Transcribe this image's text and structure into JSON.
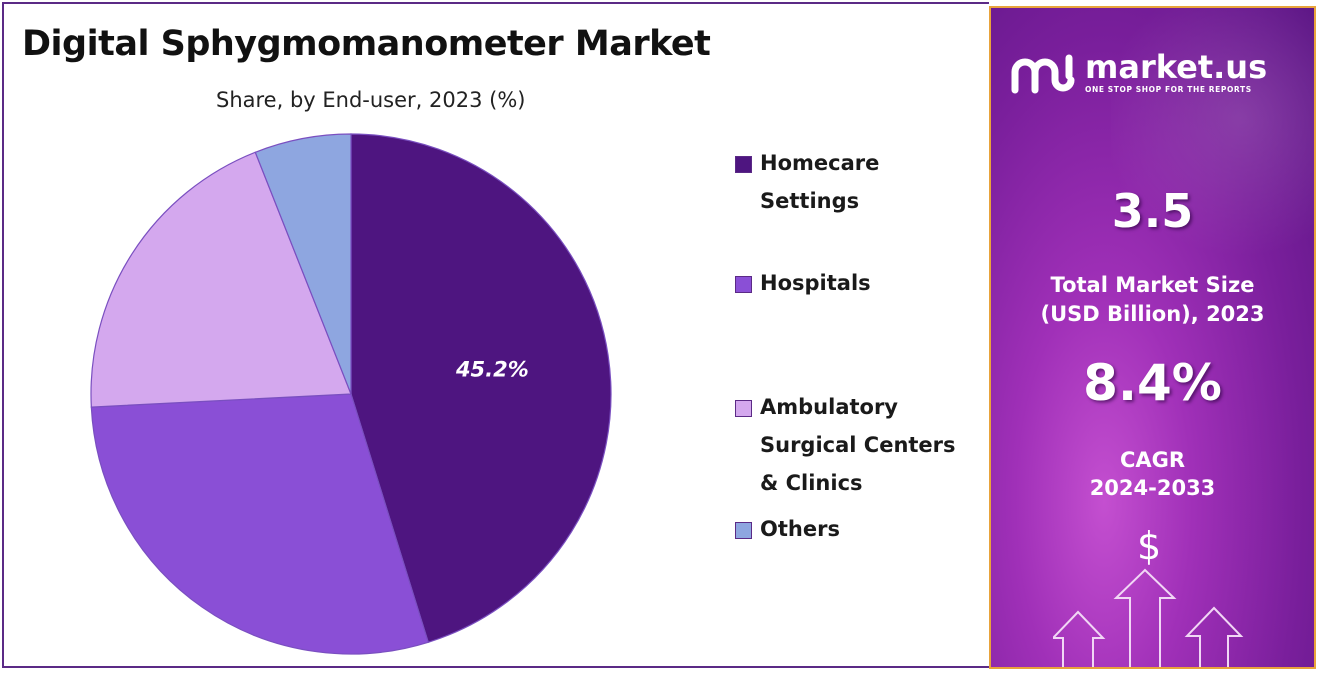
{
  "chart_data": {
    "type": "pie",
    "title": "Digital Sphygmomanometer Market",
    "subtitle": "Share, by End-user, 2023 (%)",
    "series": [
      {
        "name": "Homecare Settings",
        "value": 45.2,
        "color": "#4e1580",
        "label": "45.2%"
      },
      {
        "name": "Hospitals",
        "value": 29.0,
        "color": "#8a4fd6",
        "label": ""
      },
      {
        "name": "Ambulatory Surgical Centers & Clinics",
        "value": 19.8,
        "color": "#d4a8ee",
        "label": ""
      },
      {
        "name": "Others",
        "value": 6.0,
        "color": "#8ea6e0",
        "label": ""
      }
    ],
    "legend_position": "right"
  },
  "legend": [
    {
      "label": "Homecare Settings",
      "display": "Homecare\nSettings",
      "color": "#4e1580"
    },
    {
      "label": "Hospitals",
      "display": "Hospitals",
      "color": "#8a4fd6"
    },
    {
      "label": "Ambulatory Surgical Centers & Clinics",
      "display": "Ambulatory\nSurgical Centers\n& Clinics",
      "color": "#d4a8ee"
    },
    {
      "label": "Others",
      "display": "Others",
      "color": "#8ea6e0"
    }
  ],
  "panel": {
    "brand_name": "market.us",
    "brand_tagline": "ONE STOP SHOP FOR THE REPORTS",
    "market_size_value": "3.5",
    "market_size_label_line1": "Total Market Size",
    "market_size_label_line2": "(USD Billion), 2023",
    "cagr_value": "8.4%",
    "cagr_label_line1": "CAGR",
    "cagr_label_line2": "2024-2033",
    "currency_symbol": "$"
  }
}
